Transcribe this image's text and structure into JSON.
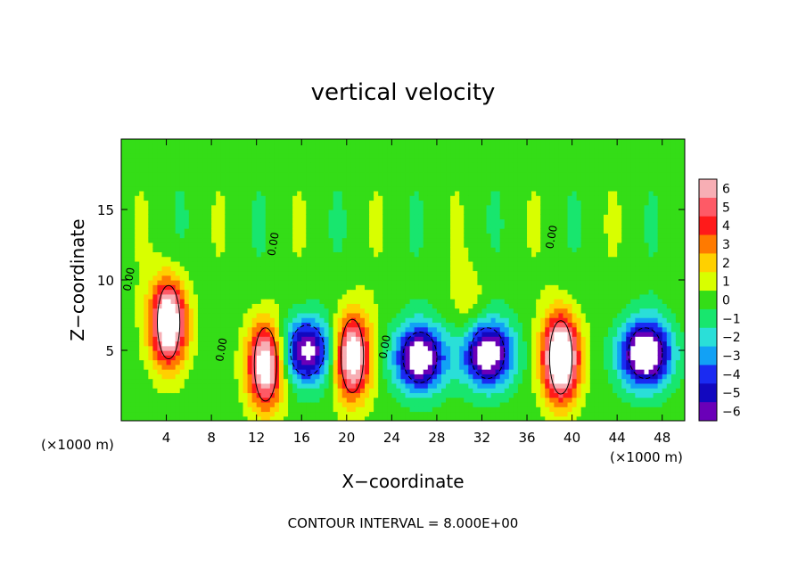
{
  "chart_data": {
    "type": "heatmap",
    "title": "vertical velocity",
    "xlabel": "X−coordinate",
    "ylabel": "Z−coordinate",
    "x_unit_left": "(×1000 m)",
    "x_unit_right": "(×1000 m)",
    "footer": "CONTOUR INTERVAL = 8.000E+00",
    "xlim": [
      0,
      50
    ],
    "ylim": [
      0,
      20
    ],
    "x_ticks": [
      4,
      8,
      12,
      16,
      20,
      24,
      28,
      32,
      36,
      40,
      44,
      48
    ],
    "y_ticks": [
      5,
      10,
      15
    ],
    "x_tick_labels": [
      "4",
      "8",
      "12",
      "16",
      "20",
      "24",
      "28",
      "32",
      "36",
      "40",
      "44",
      "48"
    ],
    "y_tick_labels": [
      "5",
      "10",
      "15"
    ],
    "colorbar": {
      "levels": [
        "6",
        "5",
        "4",
        "3",
        "2",
        "1",
        "0",
        "−1",
        "−2",
        "−3",
        "−4",
        "−5",
        "−6"
      ],
      "colors": [
        "#f7aeb4",
        "#fe5a66",
        "#ff1a1a",
        "#ff7a00",
        "#ffd000",
        "#d8ff00",
        "#34dd17",
        "#18e66e",
        "#2adfd8",
        "#12a1f5",
        "#1a2bf2",
        "#1208bf",
        "#6a00b8"
      ]
    },
    "contour_labels": [
      "0.00",
      "0.00",
      "0.00",
      "0.00",
      "0.00"
    ],
    "features": [
      {
        "kind": "updraft",
        "x": 4.2,
        "z": 7.0,
        "amp": 9
      },
      {
        "kind": "updraft",
        "x": 12.8,
        "z": 4.0,
        "amp": 8
      },
      {
        "kind": "updraft",
        "x": 20.5,
        "z": 4.6,
        "amp": 8
      },
      {
        "kind": "updraft",
        "x": 39.0,
        "z": 4.5,
        "amp": 10
      },
      {
        "kind": "updraft",
        "x": 31.0,
        "z": 8.0,
        "amp": 1.2
      },
      {
        "kind": "downdraft",
        "x": 16.5,
        "z": 5.0,
        "amp": -7
      },
      {
        "kind": "downdraft",
        "x": 26.5,
        "z": 4.5,
        "amp": -8
      },
      {
        "kind": "downdraft",
        "x": 32.5,
        "z": 4.8,
        "amp": -8
      },
      {
        "kind": "downdraft",
        "x": 46.5,
        "z": 4.8,
        "amp": -9
      }
    ],
    "grid": false,
    "legend_position": "right"
  }
}
